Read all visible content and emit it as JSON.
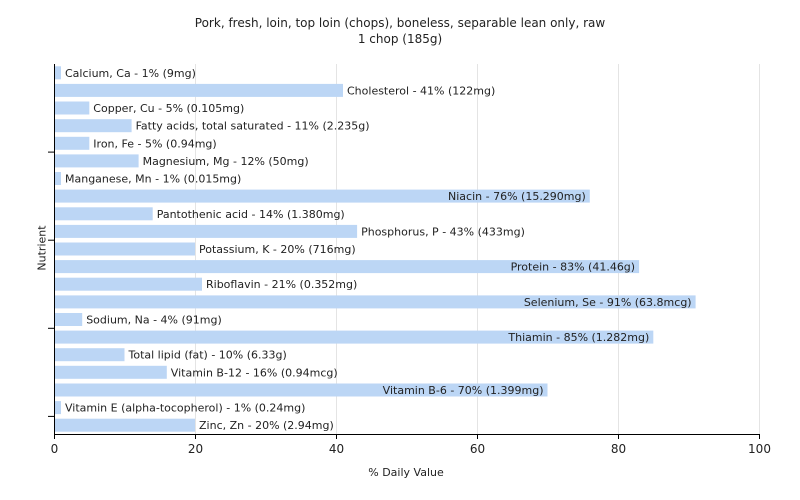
{
  "chart_data": {
    "type": "bar",
    "orientation": "horizontal",
    "title": "Pork, fresh, loin, top loin (chops), boneless, separable lean only, raw",
    "subtitle": "1 chop (185g)",
    "xlabel": "% Daily Value",
    "ylabel": "Nutrient",
    "xlim": [
      0,
      100
    ],
    "xticks": [
      0,
      20,
      40,
      60,
      80,
      100
    ],
    "grid": true,
    "bar_color": "#bcd6f5",
    "categories": [
      "Calcium, Ca",
      "Cholesterol",
      "Copper, Cu",
      "Fatty acids, total saturated",
      "Iron, Fe",
      "Magnesium, Mg",
      "Manganese, Mn",
      "Niacin",
      "Pantothenic acid",
      "Phosphorus, P",
      "Potassium, K",
      "Protein",
      "Riboflavin",
      "Selenium, Se",
      "Sodium, Na",
      "Thiamin",
      "Total lipid (fat)",
      "Vitamin B-12",
      "Vitamin B-6",
      "Vitamin E (alpha-tocopherol)",
      "Zinc, Zn"
    ],
    "values": [
      1,
      41,
      5,
      11,
      5,
      12,
      1,
      76,
      14,
      43,
      20,
      83,
      21,
      91,
      4,
      85,
      10,
      16,
      70,
      1,
      20
    ],
    "labels": [
      "Calcium, Ca - 1% (9mg)",
      "Cholesterol - 41% (122mg)",
      "Copper, Cu - 5% (0.105mg)",
      "Fatty acids, total saturated - 11% (2.235g)",
      "Iron, Fe - 5% (0.94mg)",
      "Magnesium, Mg - 12% (50mg)",
      "Manganese, Mn - 1% (0.015mg)",
      "Niacin - 76% (15.290mg)",
      "Pantothenic acid - 14% (1.380mg)",
      "Phosphorus, P - 43% (433mg)",
      "Potassium, K - 20% (716mg)",
      "Protein - 83% (41.46g)",
      "Riboflavin - 21% (0.352mg)",
      "Selenium, Se - 91% (63.8mcg)",
      "Sodium, Na - 4% (91mg)",
      "Thiamin - 85% (1.282mg)",
      "Total lipid (fat) - 10% (6.33g)",
      "Vitamin B-12 - 16% (0.94mcg)",
      "Vitamin B-6 - 70% (1.399mg)",
      "Vitamin E (alpha-tocopherol) - 1% (0.24mg)",
      "Zinc, Zn - 20% (2.94mg)"
    ]
  }
}
